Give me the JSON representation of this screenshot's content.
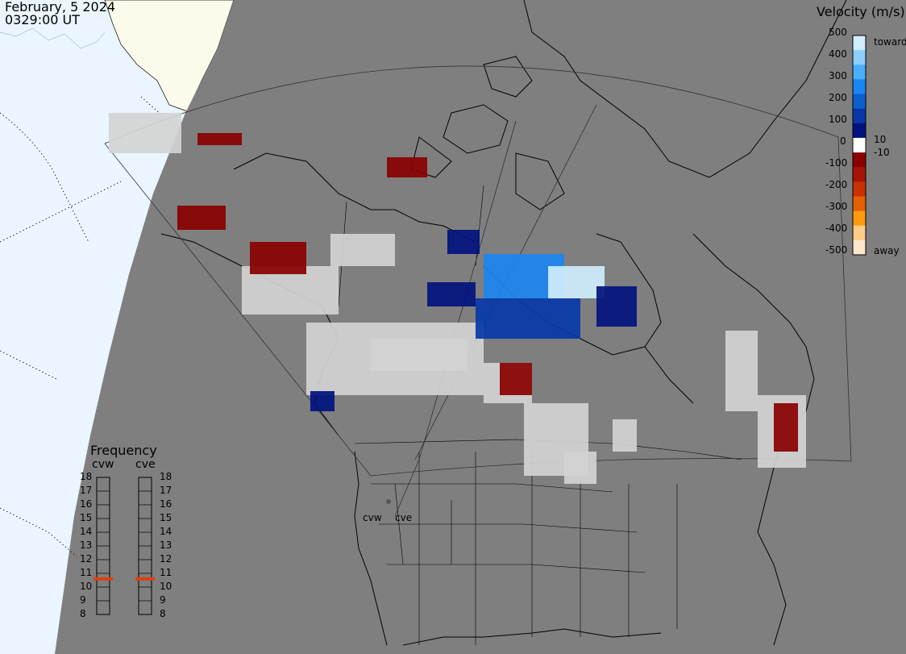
{
  "header": {
    "date": "February, 5 2024",
    "time": "0329:00 UT"
  },
  "colors": {
    "background": "#ffffff",
    "night_side": "#7f7f7f",
    "day_ocean": "#eaf5ff",
    "day_land": "#fbfbeb",
    "coastline": "#000000",
    "ground_scatter": "#d3d3d3"
  },
  "legend": {
    "title": "Velocity (m/s)",
    "toward_label": "toward",
    "away_label": "away",
    "ticks": [
      "500",
      "400",
      "300",
      "200",
      "100",
      "10",
      "0",
      "-10",
      "-100",
      "-200",
      "-300",
      "-400",
      "-500"
    ],
    "gradient": [
      "#cfeeff",
      "#8dd0ff",
      "#4aaeff",
      "#1a86f0",
      "#0d5fd0",
      "#0838a8",
      "#02127e",
      "#ffffff",
      "#8a0000",
      "#a61408",
      "#c83200",
      "#e45f00",
      "#ff9a10",
      "#ffcc88",
      "#ffe6cc"
    ]
  },
  "frequency": {
    "title": "Frequency",
    "radars": [
      "cvw",
      "cve"
    ],
    "scale": [
      "18",
      "17",
      "16",
      "15",
      "14",
      "13",
      "12",
      "11",
      "10",
      "9",
      "8"
    ],
    "cvw_mhz": 10.6,
    "cve_mhz": 10.6,
    "marker_color": "#e04010"
  },
  "site_labels": [
    "cvw",
    "cve"
  ]
}
